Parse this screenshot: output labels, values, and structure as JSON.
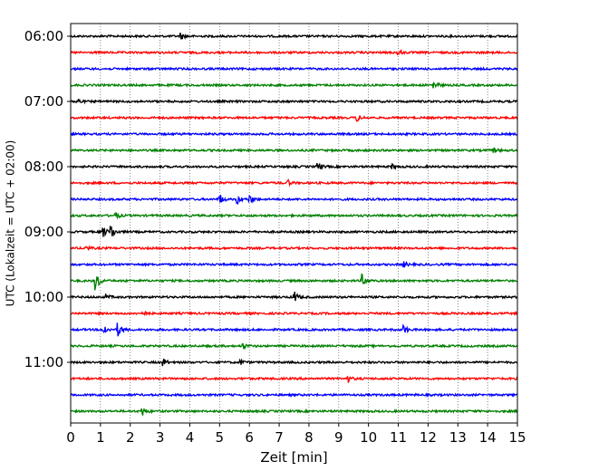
{
  "chart_data": {
    "type": "line",
    "title": "",
    "xlabel": "Zeit  [min]",
    "ylabel": "UTC (Lokalzeit = UTC + 02:00)",
    "xlim": [
      0,
      15
    ],
    "x_ticks": [
      "0",
      "1",
      "2",
      "3",
      "4",
      "5",
      "6",
      "7",
      "8",
      "9",
      "10",
      "11",
      "12",
      "13",
      "14",
      "15"
    ],
    "y_ticks": [
      "06:00",
      "07:00",
      "08:00",
      "09:00",
      "10:00",
      "11:00"
    ],
    "grid": "vertical dotted at each minute",
    "line_colors": [
      "#000000",
      "#ff0000",
      "#0000ff",
      "#008000"
    ],
    "trace_interval_min": 15,
    "series": [
      {
        "start": "06:00",
        "color": "#000000",
        "events": [
          {
            "t": 3.7,
            "amp": 0.4
          }
        ]
      },
      {
        "start": "06:15",
        "color": "#ff0000",
        "events": [
          {
            "t": 11.0,
            "amp": 0.3
          }
        ]
      },
      {
        "start": "06:30",
        "color": "#0000ff",
        "events": []
      },
      {
        "start": "06:45",
        "color": "#008000",
        "events": [
          {
            "t": 12.2,
            "amp": 0.6
          }
        ]
      },
      {
        "start": "07:00",
        "color": "#000000",
        "events": [
          {
            "t": 0.2,
            "amp": 0.4
          }
        ]
      },
      {
        "start": "07:15",
        "color": "#ff0000",
        "events": [
          {
            "t": 9.6,
            "amp": 0.5
          }
        ]
      },
      {
        "start": "07:30",
        "color": "#0000ff",
        "events": []
      },
      {
        "start": "07:45",
        "color": "#008000",
        "events": [
          {
            "t": 14.2,
            "amp": 0.3
          }
        ]
      },
      {
        "start": "08:00",
        "color": "#000000",
        "events": [
          {
            "t": 8.3,
            "amp": 0.5
          },
          {
            "t": 10.8,
            "amp": 0.3
          }
        ]
      },
      {
        "start": "08:15",
        "color": "#ff0000",
        "events": [
          {
            "t": 7.3,
            "amp": 0.3
          }
        ]
      },
      {
        "start": "08:30",
        "color": "#0000ff",
        "events": [
          {
            "t": 5.0,
            "amp": 0.7
          },
          {
            "t": 5.6,
            "amp": 0.5
          },
          {
            "t": 6.0,
            "amp": 0.6
          }
        ]
      },
      {
        "start": "08:45",
        "color": "#008000",
        "events": [
          {
            "t": 1.5,
            "amp": 0.4
          }
        ]
      },
      {
        "start": "09:00",
        "color": "#000000",
        "events": [
          {
            "t": 1.1,
            "amp": 0.6
          },
          {
            "t": 1.35,
            "amp": 1.0
          }
        ]
      },
      {
        "start": "09:15",
        "color": "#ff0000",
        "events": [
          {
            "t": 0.5,
            "amp": 0.3
          }
        ]
      },
      {
        "start": "09:30",
        "color": "#0000ff",
        "events": [
          {
            "t": 11.2,
            "amp": 0.3
          }
        ]
      },
      {
        "start": "09:45",
        "color": "#008000",
        "events": [
          {
            "t": 0.85,
            "amp": 1.2
          },
          {
            "t": 9.8,
            "amp": 0.7
          }
        ]
      },
      {
        "start": "10:00",
        "color": "#000000",
        "events": [
          {
            "t": 7.5,
            "amp": 0.8
          },
          {
            "t": 1.2,
            "amp": 0.3
          }
        ]
      },
      {
        "start": "10:15",
        "color": "#ff0000",
        "events": [
          {
            "t": 2.4,
            "amp": 0.4
          }
        ]
      },
      {
        "start": "10:30",
        "color": "#0000ff",
        "events": [
          {
            "t": 1.1,
            "amp": 0.7
          },
          {
            "t": 1.6,
            "amp": 0.8
          },
          {
            "t": 11.2,
            "amp": 0.5
          }
        ]
      },
      {
        "start": "10:45",
        "color": "#008000",
        "events": [
          {
            "t": 5.8,
            "amp": 0.3
          }
        ]
      },
      {
        "start": "11:00",
        "color": "#000000",
        "events": [
          {
            "t": 3.1,
            "amp": 0.5
          },
          {
            "t": 5.7,
            "amp": 0.3
          }
        ]
      },
      {
        "start": "11:15",
        "color": "#ff0000",
        "events": [
          {
            "t": 9.3,
            "amp": 0.4
          }
        ]
      },
      {
        "start": "11:30",
        "color": "#0000ff",
        "events": []
      },
      {
        "start": "11:45",
        "color": "#008000",
        "events": [
          {
            "t": 2.4,
            "amp": 0.5
          }
        ]
      }
    ]
  }
}
